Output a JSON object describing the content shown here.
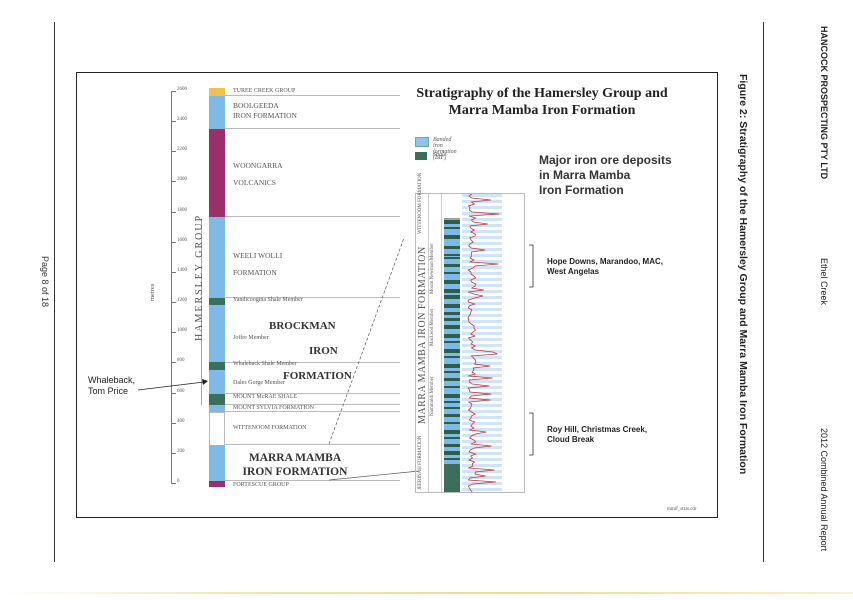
{
  "header": {
    "company": "HANCOCK PROSPECTING PTY LTD",
    "project": "Ethel Creek",
    "report": "2012 Combined Annual Report"
  },
  "page_number": "Page 8 of 18",
  "figure_caption": "Figure 2: Stratigraphy of the Hamersley Group and Marra Mamba Iron Formation",
  "figure": {
    "title_line1": "Stratigraphy of the Hamersley Group and",
    "title_line2": "Marra Mamba Iron Formation",
    "axis_unit": "metres",
    "axis_ticks": [
      "2600",
      "2400",
      "2200",
      "2000",
      "1800",
      "1600",
      "1400",
      "1200",
      "1000",
      "800",
      "600",
      "400",
      "200",
      "0"
    ],
    "group_label": "HAMERSLEY GROUP",
    "units": [
      {
        "name": "TUREE CREEK GROUP",
        "color": "#f2c14e"
      },
      {
        "name": "BOOLGEEDA",
        "name2": "IRON FORMATION",
        "color": "#7fb9e6"
      },
      {
        "name": "WOONGARRA",
        "name2": "VOLCANICS",
        "color": "#9b2f6a"
      },
      {
        "name": "WEELI WOLLI",
        "name2": "FORMATION",
        "color": "#7fb9e6"
      },
      {
        "name": "Yandicoogina Shale Member",
        "color": "#3c6e5c"
      },
      {
        "name": "Joffre Member",
        "color": "#7fb9e6"
      },
      {
        "name": "Whaleback Shale Member",
        "color": "#3c6e5c"
      },
      {
        "name": "Dales Gorge Member",
        "color": "#7fb9e6"
      },
      {
        "name": "MOUNT McRAE SHALE",
        "color": "#3c6e5c"
      },
      {
        "name": "MOUNT SYLVIA FORMATION",
        "color": "#7fb9e6"
      },
      {
        "name": "WITTENOOM FORMATION",
        "color": "#ffffff"
      },
      {
        "name": "FORTESCUE GROUP",
        "color": "#9b2f6a"
      }
    ],
    "brockman_1": "BROCKMAN",
    "brockman_2": "IRON",
    "brockman_3": "FORMATION",
    "marra_mamba_1": "MARRA MAMBA",
    "marra_mamba_2": "IRON FORMATION",
    "legend": [
      {
        "label": "Banded iron formation (BIF)",
        "color": "#8fc3ea"
      },
      {
        "label": "Shale",
        "color": "#3c6e5c"
      }
    ],
    "deposits_heading_1": "Major iron ore deposits",
    "deposits_heading_2": "in Marra Mamba",
    "deposits_heading_3": "Iron Formation",
    "deposit_upper_1": "Hope Downs, Marandoo, MAC,",
    "deposit_upper_2": "West Angelas",
    "deposit_lower_1": "Roy Hill, Christmas Creek,",
    "deposit_lower_2": "Cloud Break",
    "detail_formation": "MARRA MAMBA IRON FORMATION",
    "detail_wittenoom": "WITTENOOM FORMATION",
    "detail_jeerinah": "JEERINAH FORMATION",
    "detail_members": [
      "Mount Newman Member",
      "MacLeod Member",
      "Nammuldi Member"
    ],
    "whaleback_1": "Whaleback,",
    "whaleback_2": "Tom Price",
    "figure_ref": "mmif_strat.cdr"
  }
}
